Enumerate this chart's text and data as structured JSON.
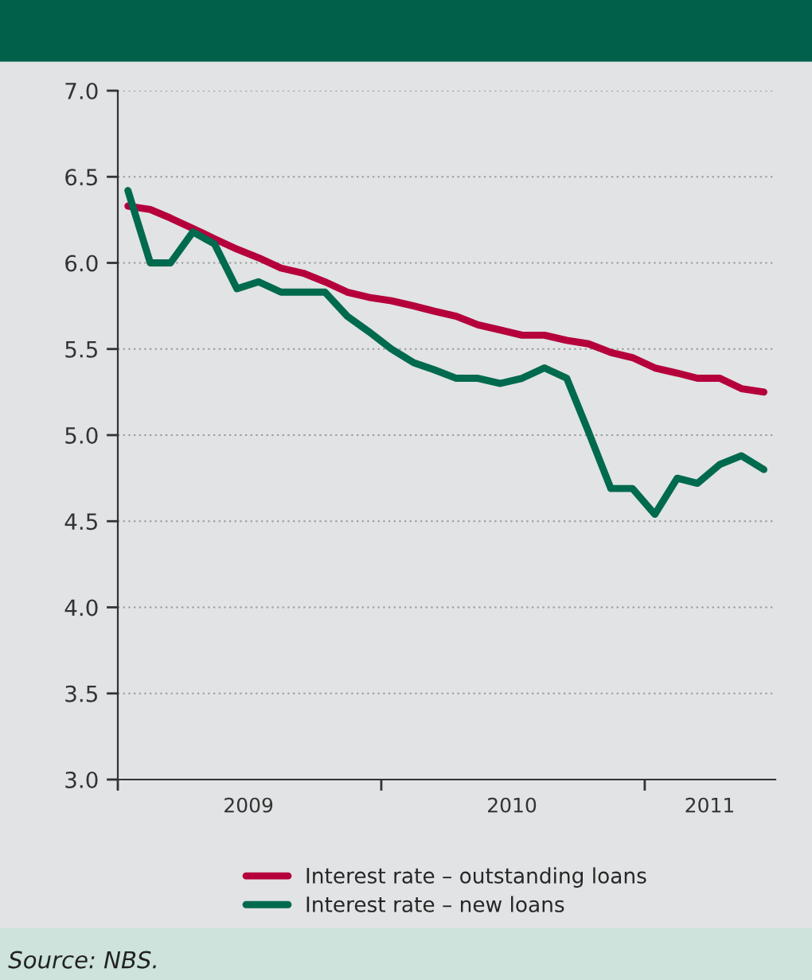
{
  "chart_data": {
    "type": "line",
    "x": [
      "2009-01-15",
      "2009-02-15",
      "2009-03-15",
      "2009-04-15",
      "2009-05-15",
      "2009-06-15",
      "2009-07-15",
      "2009-08-15",
      "2009-09-15",
      "2009-10-15",
      "2009-11-15",
      "2009-12-15",
      "2010-01-15",
      "2010-02-15",
      "2010-03-15",
      "2010-04-15",
      "2010-05-15",
      "2010-06-15",
      "2010-07-15",
      "2010-08-15",
      "2010-09-15",
      "2010-10-15",
      "2010-11-15",
      "2010-12-15",
      "2011-01-15",
      "2011-02-15",
      "2011-03-15",
      "2011-04-15",
      "2011-05-15",
      "2011-06-15"
    ],
    "series": [
      {
        "name": "Interest rate – outstanding loans",
        "color": "#b5003c",
        "values": [
          6.33,
          6.31,
          6.26,
          6.2,
          6.14,
          6.08,
          6.03,
          5.97,
          5.94,
          5.89,
          5.83,
          5.8,
          5.78,
          5.75,
          5.72,
          5.69,
          5.64,
          5.61,
          5.58,
          5.58,
          5.55,
          5.53,
          5.48,
          5.45,
          5.39,
          5.36,
          5.33,
          5.33,
          5.27,
          5.25
        ]
      },
      {
        "name": "Interest rate – new loans",
        "color": "#006a4e",
        "values": [
          6.42,
          6.0,
          6.0,
          6.18,
          6.11,
          5.85,
          5.89,
          5.83,
          5.83,
          5.83,
          5.69,
          5.6,
          5.5,
          5.42,
          5.38,
          5.33,
          5.33,
          5.3,
          5.33,
          5.39,
          5.33,
          5.02,
          4.69,
          4.69,
          4.54,
          4.75,
          4.72,
          4.83,
          4.88,
          4.8
        ]
      }
    ],
    "xlim": [
      "2009-01-01",
      "2011-07-01"
    ],
    "xticks": [
      {
        "value": "2009-01-01",
        "label": null
      },
      {
        "value": "2009-07-01",
        "label": "2009"
      },
      {
        "value": "2010-01-01",
        "label": null
      },
      {
        "value": "2010-07-01",
        "label": "2010"
      },
      {
        "value": "2011-01-01",
        "label": null
      },
      {
        "value": "2011-04-01",
        "label": "2011"
      }
    ],
    "ylim": [
      3.0,
      7.0
    ],
    "yticks": [
      {
        "value": 3.0,
        "label": "3.0"
      },
      {
        "value": 3.5,
        "label": "3.5"
      },
      {
        "value": 4.0,
        "label": "4.0"
      },
      {
        "value": 4.5,
        "label": "4.5"
      },
      {
        "value": 5.0,
        "label": "5.0"
      },
      {
        "value": 5.5,
        "label": "5.5"
      },
      {
        "value": 6.0,
        "label": "6.0"
      },
      {
        "value": 6.5,
        "label": "6.5"
      },
      {
        "value": 7.0,
        "label": "7.0"
      }
    ],
    "grid": "y",
    "legend": "bottom",
    "line_style": "solid",
    "marker": "none",
    "annotations": [
      "Source: NBS."
    ]
  }
}
